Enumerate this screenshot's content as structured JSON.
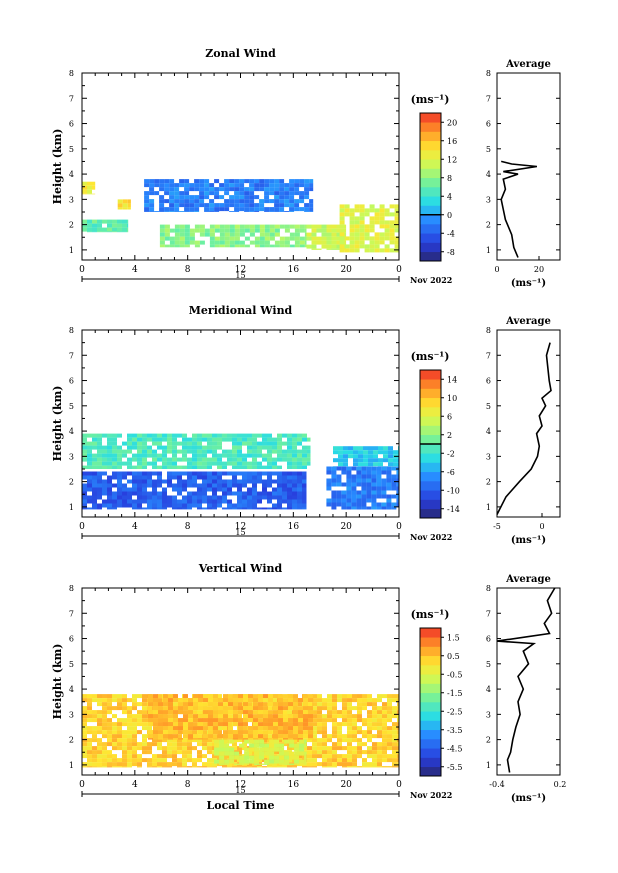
{
  "chart_data": [
    {
      "type": "heatmap",
      "title": "Zonal Wind",
      "xlabel": "",
      "ylabel": "Height (km)",
      "xlim": [
        0,
        24
      ],
      "ylim": [
        0.6,
        8
      ],
      "x_ticks": [
        "0",
        "4",
        "8",
        "12",
        "16",
        "20",
        "0"
      ],
      "y_ticks": [
        "1",
        "2",
        "3",
        "4",
        "5",
        "6",
        "7",
        "8"
      ],
      "colorbar": {
        "label": "(ms⁻¹)",
        "range": [
          -10,
          22
        ],
        "ticks": [
          "20",
          "16",
          "12",
          "8",
          "4",
          "0",
          "-4",
          "-8"
        ],
        "zero_line": 0
      },
      "date_bar": {
        "day": "15",
        "month_year": "Nov 2022"
      },
      "regions": [
        {
          "t0": 0.0,
          "t1": 1.0,
          "h0": 3.2,
          "h1": 3.7,
          "v": 13
        },
        {
          "t0": 2.7,
          "t1": 3.7,
          "h0": 2.6,
          "h1": 3.0,
          "v": 14
        },
        {
          "t0": 0.0,
          "t1": 3.5,
          "h0": 1.7,
          "h1": 2.2,
          "v": 6
        },
        {
          "t0": 4.7,
          "t1": 17.5,
          "h0": 2.5,
          "h1": 3.8,
          "v": -2
        },
        {
          "t0": 5.9,
          "t1": 17.0,
          "h0": 1.1,
          "h1": 2.0,
          "v": 8
        },
        {
          "t0": 17.0,
          "t1": 20.0,
          "h0": 1.0,
          "h1": 2.0,
          "v": 11
        },
        {
          "t0": 19.5,
          "t1": 24.0,
          "h0": 0.9,
          "h1": 2.8,
          "v": 12
        }
      ],
      "average_profile": {
        "title": "Average",
        "xlabel": "(ms⁻¹)",
        "xlim": [
          0,
          30
        ],
        "x_ticks": [
          "0",
          "20"
        ],
        "y_ticks": [
          "1",
          "2",
          "3",
          "4",
          "5",
          "6",
          "7",
          "8"
        ],
        "points": [
          [
            10,
            0.7
          ],
          [
            8,
            1.1
          ],
          [
            7,
            1.6
          ],
          [
            4,
            2.2
          ],
          [
            3,
            2.6
          ],
          [
            2,
            3.0
          ],
          [
            4,
            3.4
          ],
          [
            3,
            3.8
          ],
          [
            10,
            4.0
          ],
          [
            3,
            4.1
          ],
          [
            19,
            4.3
          ],
          [
            7,
            4.4
          ],
          [
            2,
            4.5
          ]
        ]
      }
    },
    {
      "type": "heatmap",
      "title": "Meridional Wind",
      "xlabel": "",
      "ylabel": "Height (km)",
      "xlim": [
        0,
        24
      ],
      "ylim": [
        0.6,
        8
      ],
      "x_ticks": [
        "0",
        "4",
        "8",
        "12",
        "16",
        "20",
        "0"
      ],
      "y_ticks": [
        "1",
        "2",
        "3",
        "4",
        "5",
        "6",
        "7",
        "8"
      ],
      "colorbar": {
        "label": "(ms⁻¹)",
        "range": [
          -16,
          16
        ],
        "ticks": [
          "14",
          "10",
          "6",
          "2",
          "-2",
          "-6",
          "-10",
          "-14"
        ],
        "zero_line": 0
      },
      "date_bar": {
        "day": "15",
        "month_year": "Nov 2022"
      },
      "regions": [
        {
          "t0": 0.0,
          "t1": 17.3,
          "h0": 2.5,
          "h1": 3.9,
          "v": -1
        },
        {
          "t0": 0.0,
          "t1": 17.0,
          "h0": 0.9,
          "h1": 2.4,
          "v": -10
        },
        {
          "t0": 18.5,
          "t1": 24.0,
          "h0": 0.9,
          "h1": 2.6,
          "v": -8
        },
        {
          "t0": 19.0,
          "t1": 24.0,
          "h0": 2.6,
          "h1": 3.4,
          "v": -4
        }
      ],
      "average_profile": {
        "title": "Average",
        "xlabel": "(ms⁻¹)",
        "xlim": [
          -5,
          2
        ],
        "x_ticks": [
          "-5",
          "0"
        ],
        "y_ticks": [
          "1",
          "2",
          "3",
          "4",
          "5",
          "6",
          "7",
          "8"
        ],
        "points": [
          [
            -5.0,
            0.7
          ],
          [
            -4.0,
            1.4
          ],
          [
            -2.5,
            2.0
          ],
          [
            -1.2,
            2.5
          ],
          [
            -0.5,
            3.0
          ],
          [
            -0.3,
            3.4
          ],
          [
            -0.6,
            3.9
          ],
          [
            0.0,
            4.2
          ],
          [
            -0.3,
            4.6
          ],
          [
            0.4,
            5.0
          ],
          [
            0.0,
            5.3
          ],
          [
            1.0,
            5.6
          ],
          [
            0.8,
            6.0
          ],
          [
            0.5,
            7.0
          ],
          [
            0.9,
            7.5
          ]
        ]
      }
    },
    {
      "type": "heatmap",
      "title": "Vertical Wind",
      "xlabel": "Local Time",
      "ylabel": "Height (km)",
      "xlim": [
        0,
        24
      ],
      "ylim": [
        0.6,
        8
      ],
      "x_ticks": [
        "0",
        "4",
        "8",
        "12",
        "16",
        "20",
        "0"
      ],
      "y_ticks": [
        "1",
        "2",
        "3",
        "4",
        "5",
        "6",
        "7",
        "8"
      ],
      "colorbar": {
        "label": "(ms⁻¹)",
        "range": [
          -6.0,
          2.0
        ],
        "ticks": [
          "1.5",
          "0.5",
          "-0.5",
          "-1.5",
          "-2.5",
          "-3.5",
          "-4.5",
          "-5.5"
        ],
        "zero_line": null
      },
      "date_bar": {
        "day": "15",
        "month_year": "Nov 2022"
      },
      "regions": [
        {
          "t0": 0.0,
          "t1": 24.0,
          "h0": 0.9,
          "h1": 3.8,
          "v": 0.3
        },
        {
          "t0": 5.0,
          "t1": 17.5,
          "h0": 2.0,
          "h1": 3.8,
          "v": 0.6
        },
        {
          "t0": 10.0,
          "t1": 17.0,
          "h0": 1.0,
          "h1": 2.0,
          "v": -0.6
        }
      ],
      "average_profile": {
        "title": "Average",
        "xlabel": "(ms⁻¹)",
        "xlim": [
          -0.4,
          0.2
        ],
        "x_ticks": [
          "-0.4",
          "0.2"
        ],
        "y_ticks": [
          "1",
          "2",
          "3",
          "4",
          "5",
          "6",
          "7",
          "8"
        ],
        "points": [
          [
            -0.28,
            0.7
          ],
          [
            -0.3,
            1.2
          ],
          [
            -0.27,
            1.5
          ],
          [
            -0.25,
            2.0
          ],
          [
            -0.22,
            2.5
          ],
          [
            -0.18,
            3.0
          ],
          [
            -0.2,
            3.5
          ],
          [
            -0.15,
            4.0
          ],
          [
            -0.2,
            4.5
          ],
          [
            -0.1,
            5.0
          ],
          [
            -0.15,
            5.5
          ],
          [
            -0.05,
            5.8
          ],
          [
            -0.4,
            5.9
          ],
          [
            0.1,
            6.2
          ],
          [
            0.05,
            6.6
          ],
          [
            0.12,
            7.0
          ],
          [
            0.08,
            7.5
          ],
          [
            0.15,
            8.0
          ]
        ]
      }
    }
  ]
}
